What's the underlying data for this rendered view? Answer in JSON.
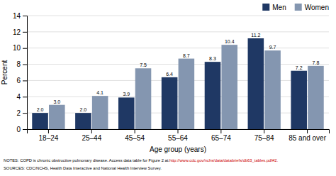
{
  "chart_data": {
    "type": "bar",
    "categories": [
      "18–24",
      "25–44",
      "45–54",
      "55–64",
      "65–74",
      "75–84",
      "85 and over"
    ],
    "series": [
      {
        "name": "Men",
        "color": "#1f3864",
        "values": [
          2.0,
          2.0,
          3.9,
          6.4,
          8.3,
          11.2,
          7.2
        ],
        "value_labels": [
          "2.0",
          "2.0",
          "3.9",
          "6.4",
          "8.3",
          "11.2",
          "7.2"
        ]
      },
      {
        "name": "Women",
        "color": "#8496b0",
        "values": [
          3.0,
          4.1,
          7.5,
          8.7,
          10.4,
          9.7,
          7.8
        ],
        "value_labels": [
          "3.0",
          "4.1",
          "7.5",
          "8.7",
          "10.4",
          "9.7",
          "7.8"
        ]
      }
    ],
    "xlabel": "Age group (years)",
    "ylabel": "Percent",
    "ylim": [
      0,
      14
    ],
    "yticks": [
      0,
      2,
      4,
      6,
      8,
      10,
      12,
      14
    ],
    "grid": true,
    "legend": "upper right",
    "data_labels": true,
    "annotations": [
      [
        {
          "text": "NOTES: COPD is chronic obstructive pulmonary disease. Access data table for Figure 2 at: "
        },
        {
          "text": "http://www.cdc.gov/nchs/data/databriefs/db63_tables.pdf#2.",
          "color": "#cc0000"
        }
      ],
      [
        {
          "text": "SOURCES: CDC/NCHS, Health Data Interactive and National Health Interview Survey."
        }
      ]
    ]
  }
}
